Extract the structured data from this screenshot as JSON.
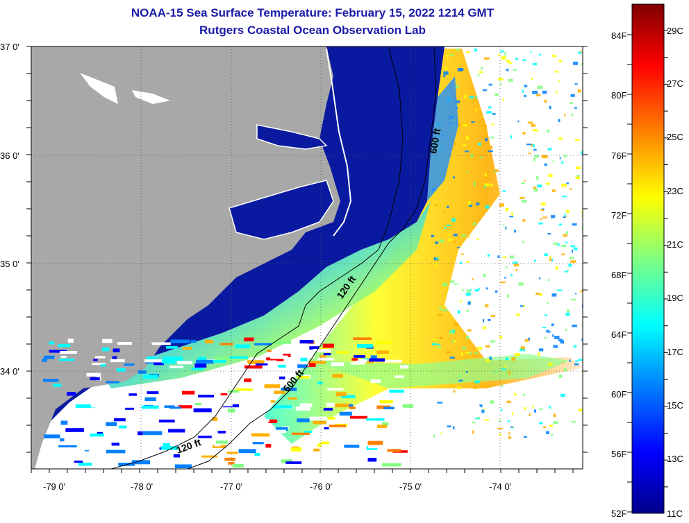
{
  "title": "NOAA-15 Sea Surface Temperature:  February 15, 2022 1214 GMT",
  "subtitle": "Rutgers Coastal Ocean Observation Lab",
  "lat_labels": [
    "37 0'",
    "36 0'",
    "35 0'",
    "34 0'"
  ],
  "lon_labels": [
    "-79 0'",
    "-78 0'",
    "-77 0'",
    "-76 0'",
    "-75 0'",
    "-74 0'"
  ],
  "contours": {
    "c600_north": "600 ft",
    "c120_mid": "120 ft",
    "c600_south": "600 ft",
    "c120_south": "120 ft"
  },
  "colorbar": {
    "f_labels": [
      "84F",
      "80F",
      "76F",
      "72F",
      "68F",
      "64F",
      "60F",
      "56F",
      "52F"
    ],
    "c_labels": [
      "29C",
      "27C",
      "25C",
      "23C",
      "21C",
      "19C",
      "17C",
      "15C",
      "13C",
      "11C"
    ],
    "colors": [
      "#00008c",
      "#0000ff",
      "#0080ff",
      "#00ffff",
      "#80ff80",
      "#ffff00",
      "#ff8000",
      "#ff0000",
      "#800000"
    ]
  },
  "colors": {
    "land": "#a8a8a8",
    "cold": "#0a1aa0",
    "title": "#1a1aa8"
  }
}
